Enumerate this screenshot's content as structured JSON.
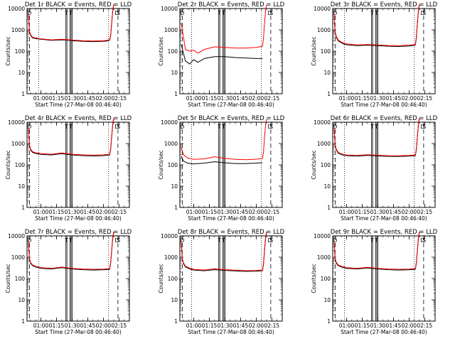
{
  "figure": {
    "x_label": "Start Time (27-Mar-08 00:46:40)",
    "y_label": "Counts/sec",
    "x_tick_labels": [
      "01:00",
      "01:15",
      "01:30",
      "01:45",
      "02:00",
      "02:15"
    ],
    "y_tick_labels": [
      "1",
      "10",
      "100",
      "1000",
      "10000"
    ],
    "flag_labels": [
      "D",
      "S",
      "T"
    ]
  },
  "chart_data": [
    {
      "type": "line",
      "title": "Det 1r BLACK = Events, RED = LLD",
      "xlabel": "Start Time (27-Mar-08 00:46:40)",
      "ylabel": "Counts/sec",
      "xlim": [
        "00:46:40",
        "02:25"
      ],
      "ylim": [
        1,
        10000
      ],
      "yscale": "log",
      "series": [
        {
          "color": "#000000",
          "x": [
            "00:48",
            "00:49",
            "00:50",
            "00:52",
            "00:56",
            "01:00",
            "01:10",
            "01:20",
            "01:25",
            "01:30",
            "01:40",
            "01:50",
            "02:00",
            "02:04",
            "02:06",
            "02:07",
            "02:08",
            "02:09",
            "02:10"
          ],
          "values": [
            5000,
            800,
            550,
            420,
            380,
            360,
            320,
            340,
            330,
            310,
            290,
            280,
            290,
            300,
            330,
            500,
            2000,
            8000,
            15000
          ]
        },
        {
          "color": "#ff0000",
          "x": [
            "00:48",
            "00:49",
            "00:50",
            "00:52",
            "00:56",
            "01:00",
            "01:10",
            "01:20",
            "01:25",
            "01:30",
            "01:40",
            "01:50",
            "02:00",
            "02:04",
            "02:06",
            "02:07",
            "02:08",
            "02:09",
            "02:10"
          ],
          "values": [
            5500,
            900,
            600,
            450,
            410,
            380,
            340,
            360,
            350,
            330,
            310,
            300,
            310,
            320,
            350,
            550,
            2200,
            9000,
            16000
          ]
        }
      ]
    },
    {
      "type": "line",
      "title": "Det 2r BLACK = Events, RED = LLD",
      "xlabel": "Start Time (27-Mar-08 00:46:40)",
      "ylabel": "Counts/sec",
      "xlim": [
        "00:46:40",
        "02:25"
      ],
      "ylim": [
        1,
        10000
      ],
      "yscale": "log",
      "series": [
        {
          "color": "#000000",
          "x": [
            "00:48",
            "00:52",
            "00:56",
            "01:00",
            "01:04",
            "01:10",
            "01:20",
            "01:30",
            "01:40",
            "01:50",
            "02:00",
            "02:06"
          ],
          "values": [
            200,
            35,
            25,
            40,
            30,
            45,
            55,
            55,
            50,
            48,
            45,
            45
          ]
        },
        {
          "color": "#ff0000",
          "x": [
            "00:48",
            "00:52",
            "00:56",
            "01:00",
            "01:04",
            "01:10",
            "01:20",
            "01:30",
            "01:40",
            "01:50",
            "02:00",
            "02:06",
            "02:07",
            "02:08",
            "02:09",
            "02:10"
          ],
          "values": [
            2000,
            120,
            100,
            110,
            80,
            120,
            160,
            150,
            140,
            140,
            150,
            170,
            400,
            2000,
            9000,
            15000
          ]
        }
      ]
    },
    {
      "type": "line",
      "title": "Det 3r BLACK = Events, RED = LLD",
      "xlabel": "Start Time (27-Mar-08 00:46:40)",
      "ylabel": "Counts/sec",
      "xlim": [
        "00:46:40",
        "02:25"
      ],
      "ylim": [
        1,
        10000
      ],
      "yscale": "log",
      "series": [
        {
          "color": "#000000",
          "x": [
            "00:48",
            "00:49",
            "00:50",
            "00:52",
            "00:56",
            "01:00",
            "01:10",
            "01:20",
            "01:30",
            "01:40",
            "01:50",
            "02:00",
            "02:06",
            "02:07",
            "02:08",
            "02:09",
            "02:10"
          ],
          "values": [
            5000,
            700,
            450,
            300,
            230,
            200,
            180,
            190,
            180,
            170,
            165,
            175,
            190,
            400,
            2000,
            8000,
            15000
          ]
        },
        {
          "color": "#ff0000",
          "x": [
            "00:48",
            "00:49",
            "00:50",
            "00:52",
            "00:56",
            "01:00",
            "01:10",
            "01:20",
            "01:30",
            "01:40",
            "01:50",
            "02:00",
            "02:06",
            "02:07",
            "02:08",
            "02:09",
            "02:10"
          ],
          "values": [
            5500,
            800,
            500,
            330,
            250,
            220,
            195,
            205,
            195,
            185,
            180,
            190,
            205,
            450,
            2200,
            9000,
            16000
          ]
        }
      ]
    },
    {
      "type": "line",
      "title": "Det 4r BLACK = Events, RED = LLD",
      "xlabel": "Start Time (27-Mar-08 00:46:40)",
      "ylabel": "Counts/sec",
      "xlim": [
        "00:46:40",
        "02:25"
      ],
      "ylim": [
        1,
        10000
      ],
      "yscale": "log",
      "series": [
        {
          "color": "#000000",
          "x": [
            "00:48",
            "00:49",
            "00:50",
            "00:52",
            "00:56",
            "01:00",
            "01:10",
            "01:20",
            "01:30",
            "01:40",
            "01:50",
            "02:00",
            "02:06",
            "02:07",
            "02:08",
            "02:09",
            "02:10"
          ],
          "values": [
            5000,
            800,
            500,
            380,
            330,
            310,
            290,
            330,
            290,
            270,
            260,
            270,
            290,
            500,
            2000,
            8000,
            15000
          ]
        },
        {
          "color": "#ff0000",
          "x": [
            "00:48",
            "00:49",
            "00:50",
            "00:52",
            "00:56",
            "01:00",
            "01:10",
            "01:20",
            "01:30",
            "01:40",
            "01:50",
            "02:00",
            "02:06",
            "02:07",
            "02:08",
            "02:09",
            "02:10"
          ],
          "values": [
            5500,
            900,
            550,
            410,
            360,
            335,
            315,
            360,
            315,
            295,
            285,
            295,
            315,
            550,
            2200,
            9000,
            16000
          ]
        }
      ]
    },
    {
      "type": "line",
      "title": "Det 5r BLACK = Events, RED = LLD",
      "xlabel": "Start Time (27-Mar-08 00:46:40)",
      "ylabel": "Counts/sec",
      "xlim": [
        "00:46:40",
        "02:25"
      ],
      "ylim": [
        1,
        10000
      ],
      "yscale": "log",
      "series": [
        {
          "color": "#000000",
          "x": [
            "00:48",
            "00:50",
            "00:54",
            "01:00",
            "01:10",
            "01:20",
            "01:30",
            "01:40",
            "01:50",
            "02:00",
            "02:06"
          ],
          "values": [
            260,
            150,
            120,
            110,
            120,
            140,
            125,
            115,
            115,
            120,
            125
          ]
        },
        {
          "color": "#ff0000",
          "x": [
            "00:48",
            "00:50",
            "00:54",
            "01:00",
            "01:10",
            "01:20",
            "01:30",
            "01:40",
            "01:50",
            "02:00",
            "02:06",
            "02:07",
            "02:08",
            "02:09",
            "02:10"
          ],
          "values": [
            700,
            300,
            210,
            180,
            190,
            240,
            200,
            180,
            175,
            185,
            195,
            400,
            2000,
            8000,
            14000
          ]
        }
      ]
    },
    {
      "type": "line",
      "title": "Det 6r BLACK = Events, RED = LLD",
      "xlabel": "Start Time (27-Mar-08 00:46:40)",
      "ylabel": "Counts/sec",
      "xlim": [
        "00:46:40",
        "02:25"
      ],
      "ylim": [
        1,
        10000
      ],
      "yscale": "log",
      "series": [
        {
          "color": "#000000",
          "x": [
            "00:48",
            "00:49",
            "00:50",
            "00:52",
            "00:56",
            "01:00",
            "01:10",
            "01:20",
            "01:30",
            "01:40",
            "01:50",
            "02:00",
            "02:06",
            "02:07",
            "02:08",
            "02:09",
            "02:10"
          ],
          "values": [
            5000,
            800,
            500,
            350,
            290,
            270,
            255,
            275,
            260,
            250,
            245,
            255,
            270,
            500,
            2000,
            8000,
            15000
          ]
        },
        {
          "color": "#ff0000",
          "x": [
            "00:48",
            "00:49",
            "00:50",
            "00:52",
            "00:56",
            "01:00",
            "01:10",
            "01:20",
            "01:30",
            "01:40",
            "01:50",
            "02:00",
            "02:06",
            "02:07",
            "02:08",
            "02:09",
            "02:10"
          ],
          "values": [
            5500,
            900,
            550,
            380,
            315,
            290,
            275,
            300,
            285,
            270,
            265,
            275,
            290,
            550,
            2200,
            9000,
            16000
          ]
        }
      ]
    },
    {
      "type": "line",
      "title": "Det 7r BLACK = Events, RED = LLD",
      "xlabel": "Start Time (27-Mar-08 00:46:40)",
      "ylabel": "Counts/sec",
      "xlim": [
        "00:46:40",
        "02:25"
      ],
      "ylim": [
        1,
        10000
      ],
      "yscale": "log",
      "series": [
        {
          "color": "#000000",
          "x": [
            "00:48",
            "00:49",
            "00:50",
            "00:52",
            "00:56",
            "01:00",
            "01:10",
            "01:20",
            "01:30",
            "01:40",
            "01:50",
            "02:00",
            "02:06",
            "02:07",
            "02:08",
            "02:09",
            "02:10"
          ],
          "values": [
            5000,
            800,
            520,
            400,
            330,
            300,
            280,
            320,
            280,
            260,
            250,
            255,
            270,
            500,
            2000,
            8000,
            15000
          ]
        },
        {
          "color": "#ff0000",
          "x": [
            "00:48",
            "00:49",
            "00:50",
            "00:52",
            "00:56",
            "01:00",
            "01:10",
            "01:20",
            "01:30",
            "01:40",
            "01:50",
            "02:00",
            "02:06",
            "02:07",
            "02:08",
            "02:09",
            "02:10"
          ],
          "values": [
            5500,
            900,
            570,
            430,
            360,
            325,
            300,
            345,
            300,
            280,
            270,
            275,
            290,
            550,
            2200,
            9000,
            16000
          ]
        }
      ]
    },
    {
      "type": "line",
      "title": "Det 8r BLACK = Events, RED = LLD",
      "xlabel": "Start Time (27-Mar-08 00:46:40)",
      "ylabel": "Counts/sec",
      "xlim": [
        "00:46:40",
        "02:25"
      ],
      "ylim": [
        1,
        10000
      ],
      "yscale": "log",
      "series": [
        {
          "color": "#000000",
          "x": [
            "00:48",
            "00:49",
            "00:50",
            "00:52",
            "00:56",
            "01:00",
            "01:10",
            "01:20",
            "01:30",
            "01:40",
            "01:50",
            "02:00",
            "02:06",
            "02:07",
            "02:08",
            "02:09",
            "02:10"
          ],
          "values": [
            5000,
            800,
            500,
            350,
            280,
            250,
            230,
            260,
            240,
            225,
            215,
            220,
            230,
            450,
            2000,
            8000,
            15000
          ]
        },
        {
          "color": "#ff0000",
          "x": [
            "00:48",
            "00:49",
            "00:50",
            "00:52",
            "00:56",
            "01:00",
            "01:10",
            "01:20",
            "01:30",
            "01:40",
            "01:50",
            "02:00",
            "02:06",
            "02:07",
            "02:08",
            "02:09",
            "02:10"
          ],
          "values": [
            5500,
            900,
            550,
            380,
            305,
            270,
            250,
            285,
            260,
            245,
            235,
            240,
            250,
            500,
            2200,
            9000,
            16000
          ]
        }
      ]
    },
    {
      "type": "line",
      "title": "Det 9r BLACK = Events, RED = LLD",
      "xlabel": "Start Time (27-Mar-08 00:46:40)",
      "ylabel": "Counts/sec",
      "xlim": [
        "00:46:40",
        "02:25"
      ],
      "ylim": [
        1,
        10000
      ],
      "yscale": "log",
      "series": [
        {
          "color": "#000000",
          "x": [
            "00:48",
            "00:49",
            "00:50",
            "00:52",
            "00:56",
            "01:00",
            "01:10",
            "01:20",
            "01:30",
            "01:40",
            "01:50",
            "02:00",
            "02:06",
            "02:07",
            "02:08",
            "02:09",
            "02:10"
          ],
          "values": [
            5000,
            800,
            520,
            400,
            330,
            300,
            280,
            310,
            280,
            260,
            250,
            255,
            270,
            500,
            2000,
            8000,
            15000
          ]
        },
        {
          "color": "#ff0000",
          "x": [
            "00:48",
            "00:49",
            "00:50",
            "00:52",
            "00:56",
            "01:00",
            "01:10",
            "01:20",
            "01:30",
            "01:40",
            "01:50",
            "02:00",
            "02:06",
            "02:07",
            "02:08",
            "02:09",
            "02:10"
          ],
          "values": [
            5500,
            900,
            570,
            430,
            360,
            325,
            300,
            335,
            300,
            280,
            270,
            275,
            290,
            550,
            2200,
            9000,
            16000
          ]
        }
      ]
    }
  ]
}
